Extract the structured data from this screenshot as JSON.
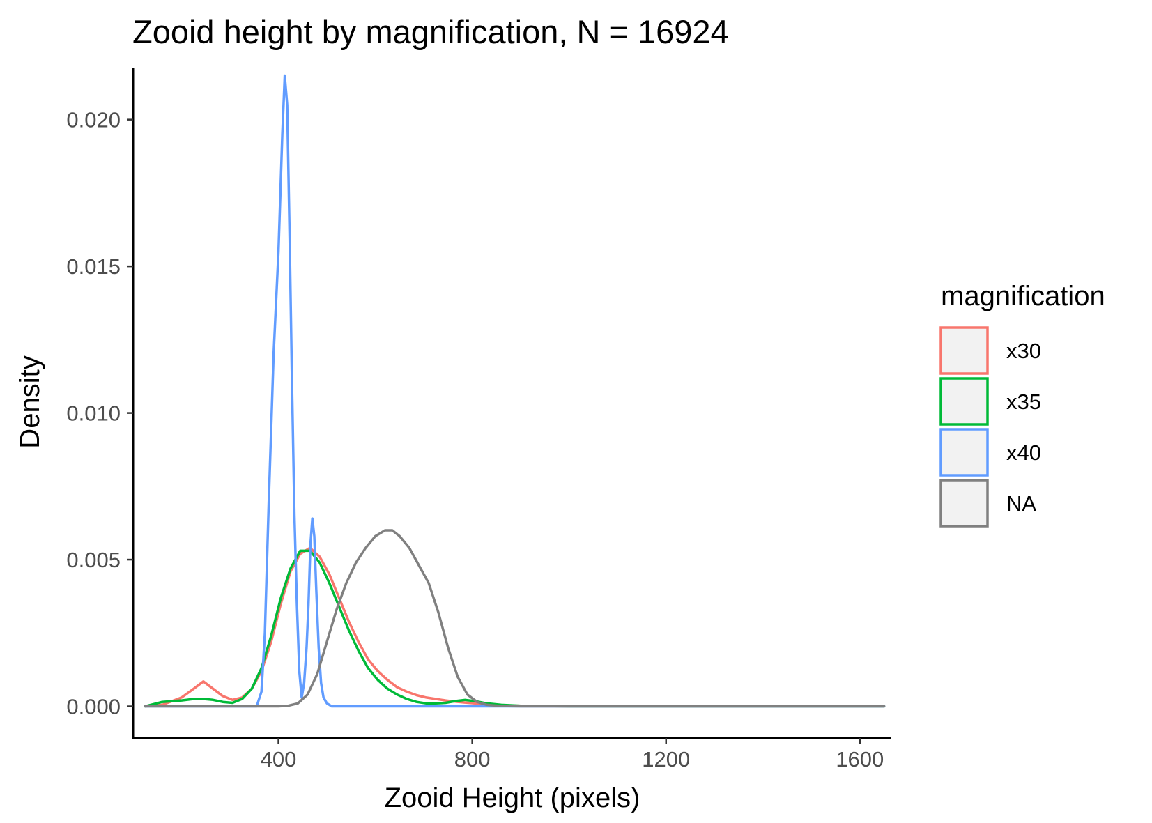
{
  "chart_data": {
    "type": "line",
    "title": "Zooid height by magnification, N = 16924",
    "xlabel": "Zooid Height (pixels)",
    "ylabel": "Density",
    "xlim": [
      100,
      1665
    ],
    "ylim": [
      -0.00108,
      0.02175
    ],
    "x_ticks": [
      400,
      800,
      1200,
      1600
    ],
    "x_tick_labels": [
      "400",
      "800",
      "1200",
      "1600"
    ],
    "y_ticks": [
      0.0,
      0.005,
      0.01,
      0.015,
      0.02
    ],
    "y_tick_labels": [
      "0.000",
      "0.005",
      "0.010",
      "0.015",
      "0.020"
    ],
    "grid": false,
    "legend": {
      "title": "magnification",
      "position": "right"
    },
    "series": [
      {
        "name": "x30",
        "color": "#F8766D",
        "x": [
          125,
          160,
          200,
          225,
          245,
          265,
          285,
          305,
          325,
          345,
          365,
          385,
          405,
          425,
          445,
          465,
          485,
          505,
          525,
          545,
          565,
          585,
          605,
          625,
          645,
          665,
          685,
          705,
          725,
          745,
          765,
          785,
          805,
          830,
          860,
          900,
          1000,
          1200,
          1400,
          1600,
          1650
        ],
        "y": [
          0.0,
          5e-05,
          0.0003,
          0.0006,
          0.00085,
          0.0006,
          0.00035,
          0.00022,
          0.0003,
          0.0006,
          0.0012,
          0.0022,
          0.0035,
          0.0046,
          0.0052,
          0.0054,
          0.0051,
          0.0045,
          0.0037,
          0.0029,
          0.0022,
          0.0016,
          0.0012,
          0.0009,
          0.00065,
          0.0005,
          0.00038,
          0.0003,
          0.00025,
          0.0002,
          0.00016,
          0.00013,
          0.0001,
          7e-05,
          4e-05,
          2e-05,
          0.0,
          0.0,
          0.0,
          0.0,
          0.0
        ]
      },
      {
        "name": "x35",
        "color": "#00BA38",
        "x": [
          125,
          160,
          200,
          225,
          245,
          265,
          285,
          305,
          325,
          345,
          365,
          385,
          405,
          425,
          445,
          465,
          485,
          505,
          525,
          545,
          565,
          585,
          605,
          625,
          645,
          665,
          685,
          705,
          725,
          745,
          765,
          785,
          805,
          830,
          860,
          900,
          1000,
          1200,
          1400,
          1600,
          1650
        ],
        "y": [
          0.0,
          0.00015,
          0.0002,
          0.00025,
          0.00025,
          0.00022,
          0.00015,
          0.00012,
          0.00025,
          0.0006,
          0.0013,
          0.0024,
          0.0037,
          0.0047,
          0.0053,
          0.0053,
          0.0049,
          0.0042,
          0.0034,
          0.0026,
          0.0019,
          0.0013,
          0.0009,
          0.0006,
          0.0004,
          0.00025,
          0.00015,
          0.0001,
          0.0001,
          0.00012,
          0.00018,
          0.00022,
          0.00018,
          0.0001,
          5e-05,
          2e-05,
          0.0,
          0.0,
          0.0,
          0.0,
          0.0
        ]
      },
      {
        "name": "x40",
        "color": "#619CFF",
        "x": [
          125,
          300,
          355,
          365,
          372,
          380,
          390,
          400,
          408,
          413,
          418,
          423,
          428,
          433,
          438,
          443,
          448,
          453,
          458,
          462,
          466,
          470,
          474,
          478,
          483,
          488,
          493,
          500,
          510,
          600,
          800,
          1000,
          1650
        ],
        "y": [
          0.0,
          0.0,
          0.0,
          0.0005,
          0.0025,
          0.007,
          0.012,
          0.0155,
          0.0195,
          0.0215,
          0.0205,
          0.016,
          0.011,
          0.0065,
          0.0035,
          0.0012,
          0.0003,
          0.0008,
          0.002,
          0.0035,
          0.0055,
          0.0064,
          0.0058,
          0.004,
          0.002,
          0.0008,
          0.0003,
          0.0001,
          0.0,
          0.0,
          0.0,
          0.0,
          0.0
        ]
      },
      {
        "name": "NA",
        "color": "#808080",
        "x": [
          125,
          400,
          420,
          440,
          460,
          480,
          500,
          520,
          540,
          560,
          580,
          600,
          620,
          635,
          650,
          670,
          690,
          710,
          730,
          750,
          770,
          790,
          810,
          830,
          860,
          900,
          1000,
          1650
        ],
        "y": [
          0.0,
          0.0,
          2e-05,
          0.0001,
          0.0004,
          0.0011,
          0.0022,
          0.0033,
          0.0042,
          0.0049,
          0.0054,
          0.0058,
          0.006,
          0.006,
          0.0058,
          0.0054,
          0.0048,
          0.0042,
          0.0032,
          0.002,
          0.001,
          0.0004,
          0.00015,
          5e-05,
          1e-05,
          0.0,
          0.0,
          0.0
        ]
      }
    ]
  }
}
